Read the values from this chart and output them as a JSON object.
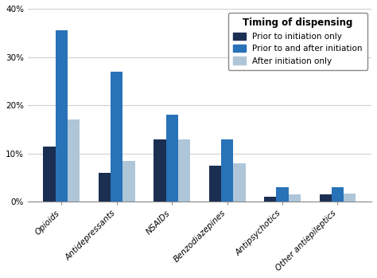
{
  "categories": [
    "Opioids",
    "Antidepressants",
    "NSAIDs",
    "Benzodiazepines",
    "Antipsychotics",
    "Other antiepileptics"
  ],
  "series": [
    {
      "label": "Prior to initiation only",
      "color": "#1b2f52",
      "values": [
        11.5,
        6.0,
        13.0,
        7.5,
        1.0,
        1.5
      ]
    },
    {
      "label": "Prior to and after initiation",
      "color": "#2872b8",
      "values": [
        35.5,
        27.0,
        18.0,
        13.0,
        3.0,
        3.0
      ]
    },
    {
      "label": "After initiation only",
      "color": "#aec6d8",
      "values": [
        17.0,
        8.5,
        13.0,
        8.0,
        1.5,
        1.7
      ]
    }
  ],
  "ylim": [
    0,
    40
  ],
  "yticks": [
    0,
    10,
    20,
    30,
    40
  ],
  "ytick_labels": [
    "0%",
    "10%",
    "20%",
    "30%",
    "40%"
  ],
  "legend_title": "Timing of dispensing",
  "bar_width": 0.22,
  "background_color": "#ffffff",
  "plot_bg_color": "#ffffff",
  "legend_fontsize": 7.5,
  "legend_title_fontsize": 8.5,
  "tick_fontsize": 7.5,
  "grid_color": "#d0d0d0"
}
